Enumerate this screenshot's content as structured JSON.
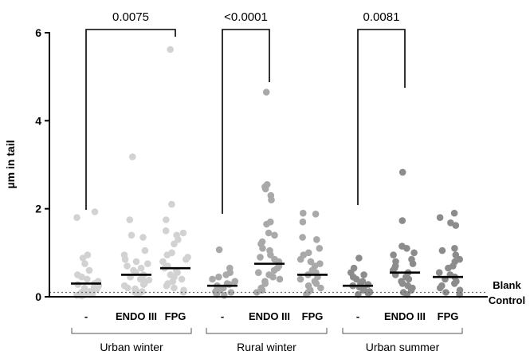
{
  "chart_data": {
    "type": "scatter",
    "ylabel": "µm in tail",
    "ylim": [
      0,
      6
    ],
    "yticks": [
      0,
      2,
      4,
      6
    ],
    "groups": [
      {
        "label": "Urban winter",
        "color": "#d2d2d2",
        "categories": [
          {
            "label": "-",
            "mean": 0.3,
            "values": [
              1.93,
              1.8,
              0.95,
              0.88,
              0.75,
              0.6,
              0.5,
              0.45,
              0.4,
              0.35,
              0.3,
              0.28,
              0.25,
              0.22,
              0.2,
              0.18,
              0.15,
              0.12,
              0.1,
              0.08,
              0.06,
              0.05,
              0.04,
              0.03,
              0.02
            ]
          },
          {
            "label": "ENDO III",
            "mean": 0.5,
            "values": [
              3.18,
              1.75,
              1.4,
              1.35,
              1.05,
              0.95,
              0.85,
              0.8,
              0.75,
              0.7,
              0.65,
              0.6,
              0.55,
              0.5,
              0.45,
              0.4,
              0.38,
              0.35,
              0.3,
              0.28,
              0.25,
              0.2,
              0.18,
              0.15,
              0.12,
              0.1,
              0.08,
              0.05
            ]
          },
          {
            "label": "FPG",
            "mean": 0.65,
            "values": [
              5.62,
              2.1,
              1.75,
              1.5,
              1.45,
              1.4,
              1.3,
              1.2,
              1.0,
              0.95,
              0.9,
              0.85,
              0.8,
              0.7,
              0.65,
              0.6,
              0.55,
              0.5,
              0.45,
              0.4,
              0.35,
              0.3,
              0.25,
              0.2,
              0.15,
              0.1
            ]
          }
        ]
      },
      {
        "label": "Rural winter",
        "color": "#a9a9a9",
        "categories": [
          {
            "label": "-",
            "mean": 0.25,
            "values": [
              1.07,
              0.65,
              0.55,
              0.5,
              0.45,
              0.4,
              0.35,
              0.3,
              0.28,
              0.25,
              0.22,
              0.2,
              0.18,
              0.15,
              0.12,
              0.1,
              0.08,
              0.05,
              0.03
            ]
          },
          {
            "label": "ENDO III",
            "mean": 0.75,
            "values": [
              4.65,
              2.55,
              2.5,
              2.45,
              2.3,
              2.2,
              1.7,
              1.65,
              1.45,
              1.4,
              1.25,
              1.2,
              1.1,
              1.05,
              0.95,
              0.9,
              0.85,
              0.8,
              0.7,
              0.65,
              0.6,
              0.55,
              0.5,
              0.45,
              0.4,
              0.35,
              0.3,
              0.2,
              0.15,
              0.1
            ]
          },
          {
            "label": "FPG",
            "mean": 0.5,
            "values": [
              1.9,
              1.88,
              1.7,
              1.35,
              1.3,
              1.1,
              1.0,
              0.95,
              0.85,
              0.8,
              0.75,
              0.7,
              0.6,
              0.55,
              0.5,
              0.45,
              0.4,
              0.35,
              0.3,
              0.25,
              0.2,
              0.15,
              0.1,
              0.05
            ]
          }
        ]
      },
      {
        "label": "Urban summer",
        "color": "#8c8c8c",
        "categories": [
          {
            "label": "-",
            "mean": 0.25,
            "values": [
              0.88,
              0.65,
              0.55,
              0.5,
              0.45,
              0.4,
              0.35,
              0.3,
              0.28,
              0.25,
              0.22,
              0.2,
              0.18,
              0.15,
              0.12,
              0.1,
              0.08,
              0.05
            ]
          },
          {
            "label": "ENDO III",
            "mean": 0.55,
            "values": [
              2.83,
              1.73,
              1.15,
              1.1,
              1.0,
              0.95,
              0.85,
              0.8,
              0.75,
              0.7,
              0.65,
              0.6,
              0.55,
              0.5,
              0.45,
              0.4,
              0.35,
              0.3,
              0.25,
              0.2,
              0.15,
              0.1,
              0.05
            ]
          },
          {
            "label": "FPG",
            "mean": 0.45,
            "values": [
              1.9,
              1.8,
              1.68,
              1.62,
              1.1,
              1.05,
              0.95,
              0.85,
              0.8,
              0.7,
              0.65,
              0.55,
              0.5,
              0.45,
              0.4,
              0.35,
              0.3,
              0.25,
              0.2,
              0.15,
              0.1,
              0.05
            ]
          }
        ]
      }
    ],
    "comparisons": [
      {
        "group": 0,
        "from": 0,
        "to": 2,
        "p": "0.0075"
      },
      {
        "group": 1,
        "from": 0,
        "to": 1,
        "p": "<0.0001"
      },
      {
        "group": 2,
        "from": 0,
        "to": 1,
        "p": "0.0081"
      }
    ],
    "reference_line": {
      "value": 0.1,
      "label_line1": "Blank",
      "label_line2": "Control"
    }
  }
}
